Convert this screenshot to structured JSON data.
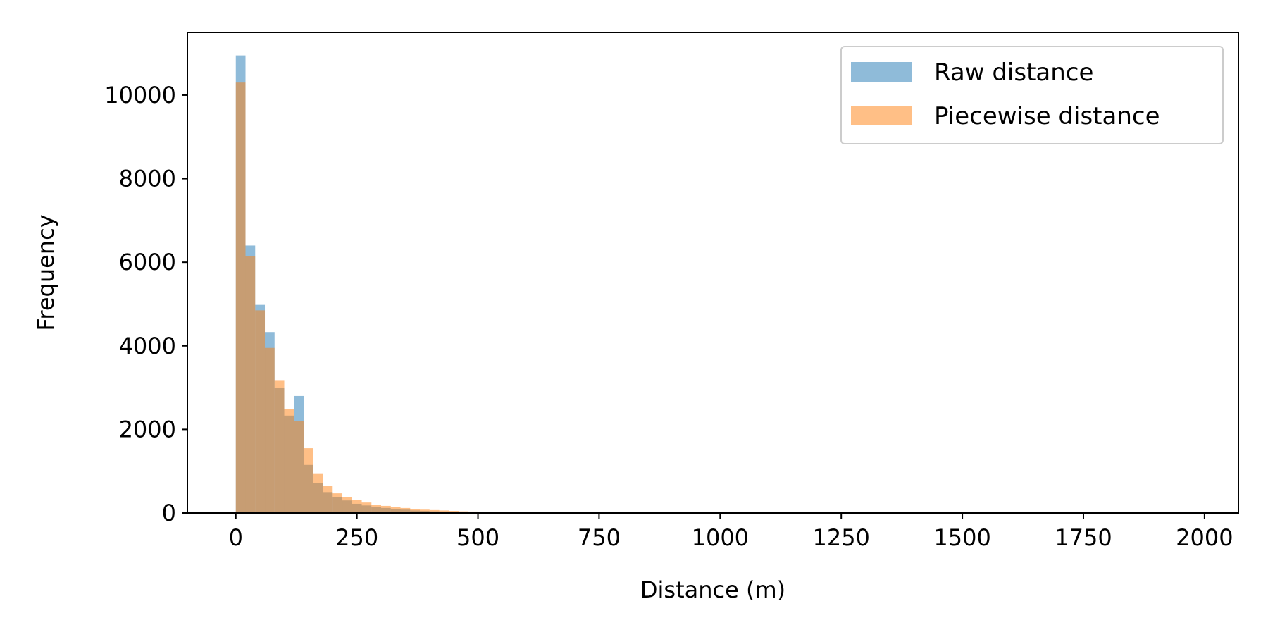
{
  "chart_data": {
    "type": "bar",
    "title": "",
    "xlabel": "Distance (m)",
    "ylabel": "Frequency",
    "xlim": [
      -100,
      2070
    ],
    "ylim": [
      0,
      11500
    ],
    "xticks": [
      0,
      250,
      500,
      750,
      1000,
      1250,
      1500,
      1750,
      2000
    ],
    "xtick_labels": [
      "0",
      "250",
      "500",
      "750",
      "1000",
      "1250",
      "1500",
      "1750",
      "2000"
    ],
    "yticks": [
      0,
      2000,
      4000,
      6000,
      8000,
      10000
    ],
    "ytick_labels": [
      "0",
      "2000",
      "4000",
      "6000",
      "8000",
      "10000"
    ],
    "bin_width": 20,
    "bin_start": 0,
    "grid": false,
    "legend_position": "top-right",
    "series": [
      {
        "name": "Raw distance",
        "color": "#1f77b4",
        "alpha": 0.5,
        "values": [
          10950,
          6400,
          4980,
          4330,
          3000,
          2330,
          2800,
          1150,
          720,
          500,
          380,
          300,
          220,
          180,
          140,
          120,
          100,
          80,
          60,
          50,
          40,
          35,
          30,
          25,
          20,
          15,
          12,
          10,
          8,
          6,
          5,
          4,
          3
        ]
      },
      {
        "name": "Piecewise distance",
        "color": "#ff7f0e",
        "alpha": 0.5,
        "values": [
          10300,
          6150,
          4850,
          3950,
          3180,
          2480,
          2200,
          1550,
          950,
          650,
          470,
          380,
          310,
          250,
          200,
          170,
          150,
          120,
          100,
          80,
          70,
          60,
          50,
          40,
          35,
          30,
          25,
          20,
          15,
          10,
          8,
          6,
          5
        ]
      }
    ]
  }
}
